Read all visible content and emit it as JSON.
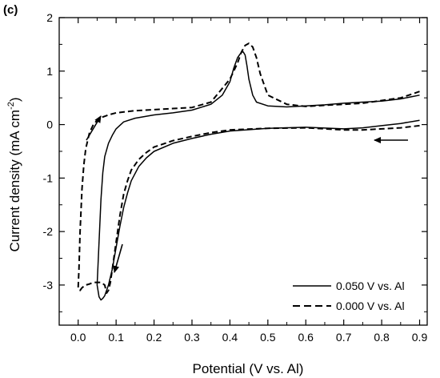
{
  "chart_data": {
    "type": "line",
    "panel_label": "(c)",
    "xlabel": "Potential (V vs. Al)",
    "ylabel_main": "Current density (mA cm",
    "ylabel_sup": "-2",
    "ylabel_close": ")",
    "xlim": [
      -0.05,
      0.92
    ],
    "ylim": [
      -3.75,
      2.0
    ],
    "x_ticks": [
      0.0,
      0.1,
      0.2,
      0.3,
      0.4,
      0.5,
      0.6,
      0.7,
      0.8,
      0.9
    ],
    "x_tick_labels": [
      "0.0",
      "0.1",
      "0.2",
      "0.3",
      "0.4",
      "0.5",
      "0.6",
      "0.7",
      "0.8",
      "0.9"
    ],
    "y_ticks": [
      -3,
      -2,
      -1,
      0,
      1,
      2
    ],
    "y_tick_labels": [
      "-3",
      "-2",
      "-1",
      "0",
      "1",
      "2"
    ],
    "grid": false,
    "legend_position": "bottom-right",
    "series": [
      {
        "name": "0.050 V vs. Al",
        "style": "solid",
        "color": "#000000",
        "x": [
          0.9,
          0.85,
          0.8,
          0.75,
          0.7,
          0.6,
          0.5,
          0.4,
          0.35,
          0.3,
          0.25,
          0.2,
          0.18,
          0.16,
          0.14,
          0.13,
          0.12,
          0.11,
          0.1,
          0.09,
          0.08,
          0.07,
          0.065,
          0.06,
          0.055,
          0.05,
          0.055,
          0.06,
          0.065,
          0.07,
          0.08,
          0.09,
          0.1,
          0.12,
          0.15,
          0.2,
          0.25,
          0.3,
          0.35,
          0.38,
          0.4,
          0.41,
          0.42,
          0.43,
          0.435,
          0.44,
          0.445,
          0.45,
          0.46,
          0.47,
          0.5,
          0.55,
          0.6,
          0.65,
          0.7,
          0.75,
          0.8,
          0.85,
          0.9
        ],
        "y": [
          0.08,
          0.02,
          -0.02,
          -0.06,
          -0.08,
          -0.05,
          -0.07,
          -0.12,
          -0.18,
          -0.26,
          -0.35,
          -0.5,
          -0.62,
          -0.78,
          -1.05,
          -1.28,
          -1.55,
          -1.9,
          -2.3,
          -2.7,
          -3.0,
          -3.2,
          -3.25,
          -3.28,
          -3.22,
          -3.0,
          -2.2,
          -1.4,
          -0.9,
          -0.6,
          -0.35,
          -0.2,
          -0.08,
          0.05,
          0.12,
          0.18,
          0.22,
          0.27,
          0.38,
          0.55,
          0.8,
          1.05,
          1.25,
          1.35,
          1.36,
          1.3,
          1.1,
          0.85,
          0.55,
          0.42,
          0.35,
          0.33,
          0.35,
          0.37,
          0.4,
          0.42,
          0.44,
          0.48,
          0.55
        ]
      },
      {
        "name": "0.000 V vs. Al",
        "style": "dashed",
        "color": "#000000",
        "x": [
          0.9,
          0.85,
          0.8,
          0.75,
          0.7,
          0.6,
          0.5,
          0.4,
          0.35,
          0.3,
          0.25,
          0.2,
          0.18,
          0.16,
          0.14,
          0.13,
          0.12,
          0.11,
          0.1,
          0.09,
          0.085,
          0.08,
          0.075,
          0.07,
          0.06,
          0.05,
          0.04,
          0.03,
          0.02,
          0.01,
          0.005,
          0.0,
          0.002,
          0.005,
          0.01,
          0.015,
          0.02,
          0.03,
          0.04,
          0.05,
          0.06,
          0.08,
          0.1,
          0.15,
          0.2,
          0.25,
          0.3,
          0.35,
          0.4,
          0.42,
          0.43,
          0.44,
          0.45,
          0.46,
          0.47,
          0.48,
          0.5,
          0.55,
          0.6,
          0.65,
          0.7,
          0.75,
          0.8,
          0.85,
          0.9
        ],
        "y": [
          -0.02,
          -0.06,
          -0.08,
          -0.1,
          -0.1,
          -0.06,
          -0.07,
          -0.1,
          -0.15,
          -0.22,
          -0.3,
          -0.42,
          -0.52,
          -0.65,
          -0.85,
          -1.05,
          -1.3,
          -1.7,
          -2.2,
          -2.7,
          -2.95,
          -3.1,
          -3.15,
          -3.0,
          -2.95,
          -2.95,
          -2.95,
          -2.98,
          -3.0,
          -3.05,
          -3.1,
          -3.05,
          -2.7,
          -2.0,
          -1.2,
          -0.75,
          -0.45,
          -0.15,
          0.0,
          0.08,
          0.13,
          0.18,
          0.22,
          0.26,
          0.28,
          0.3,
          0.32,
          0.42,
          0.85,
          1.15,
          1.35,
          1.48,
          1.52,
          1.45,
          1.25,
          0.95,
          0.55,
          0.38,
          0.34,
          0.36,
          0.38,
          0.4,
          0.45,
          0.5,
          0.62
        ]
      }
    ]
  }
}
